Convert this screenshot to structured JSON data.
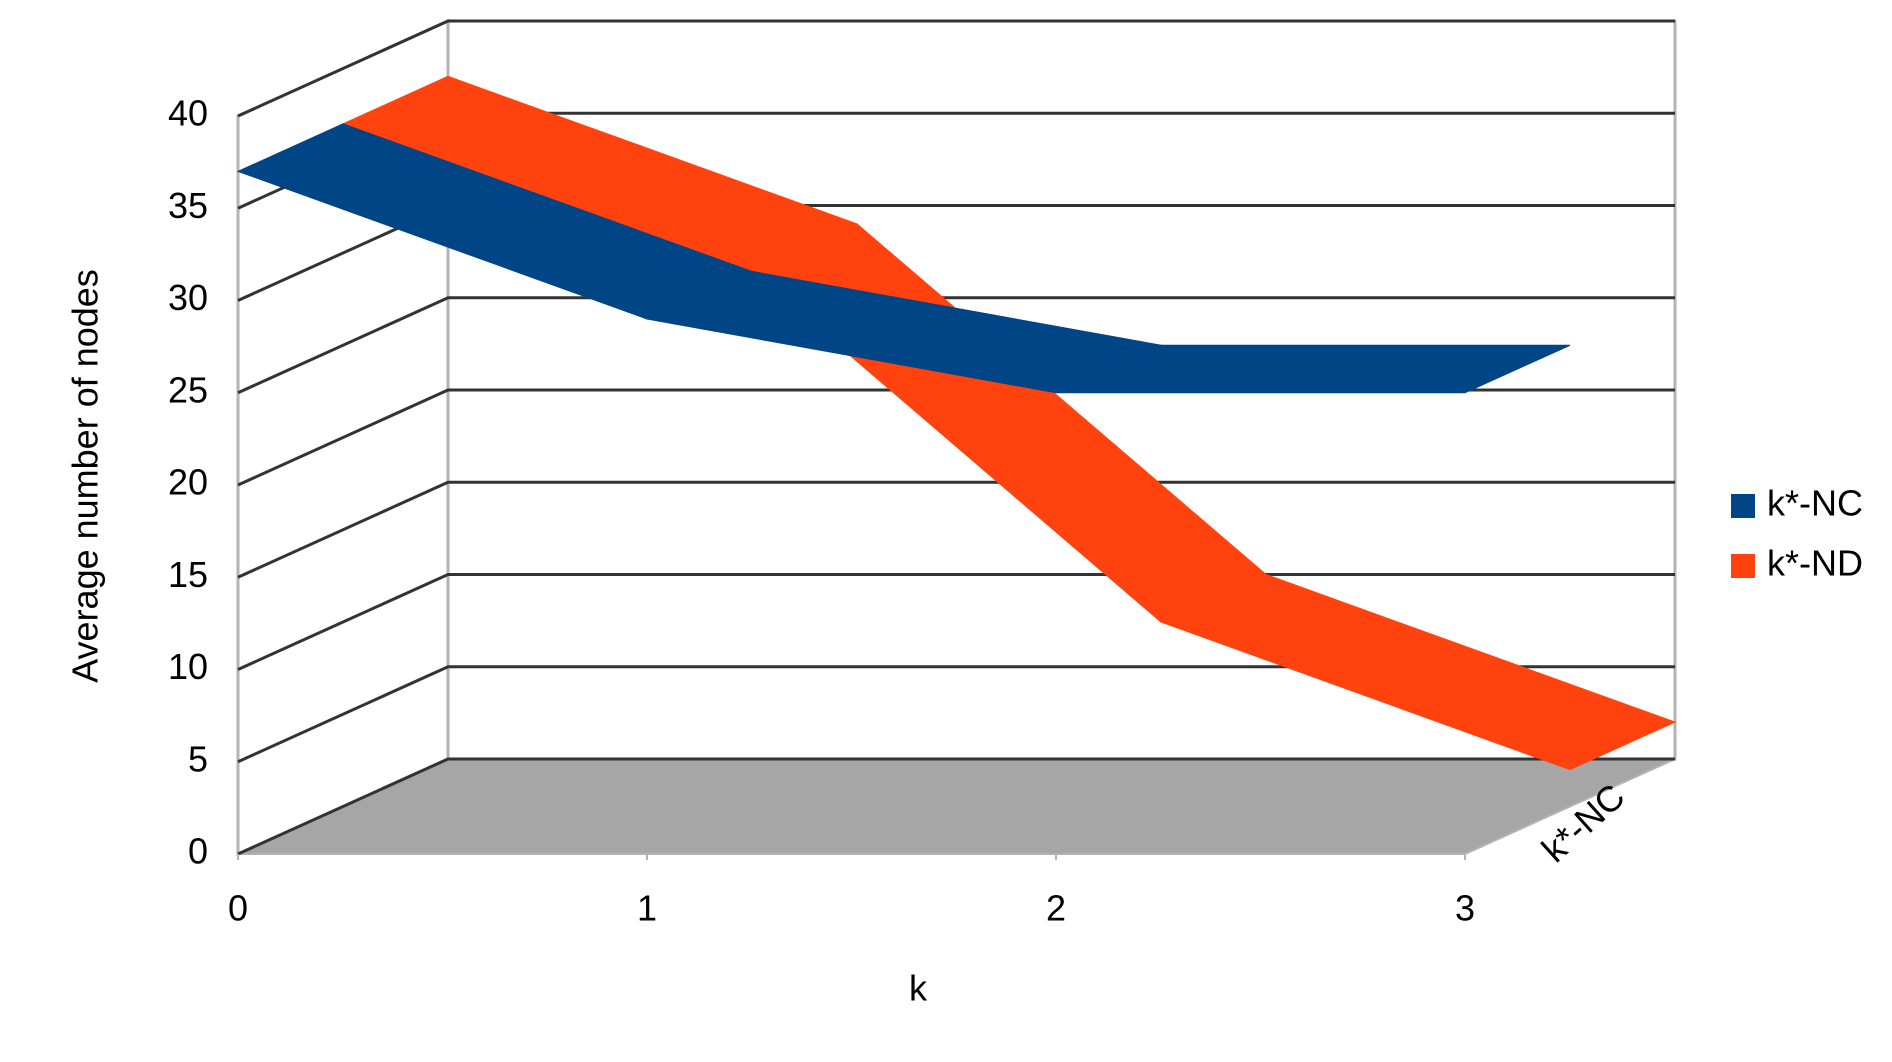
{
  "chart_data": {
    "type": "line3d",
    "x_label": "k",
    "y_label": "Average number of nodes",
    "x": [
      0,
      1,
      2,
      3
    ],
    "xlim": [
      0,
      3
    ],
    "xticks": [
      0,
      1,
      2,
      3
    ],
    "ylim": [
      0,
      40
    ],
    "yticks": [
      0,
      5,
      10,
      15,
      20,
      25,
      30,
      35,
      40
    ],
    "grid": true,
    "depth_categories": [
      "k*-NC"
    ],
    "legend": "right",
    "series": [
      {
        "name": "k*-NC",
        "color": "#004586",
        "values": [
          37,
          29,
          25,
          25
        ]
      },
      {
        "name": "k*-ND",
        "color": "#ff420e",
        "values": [
          37,
          29,
          10,
          2
        ]
      }
    ]
  }
}
